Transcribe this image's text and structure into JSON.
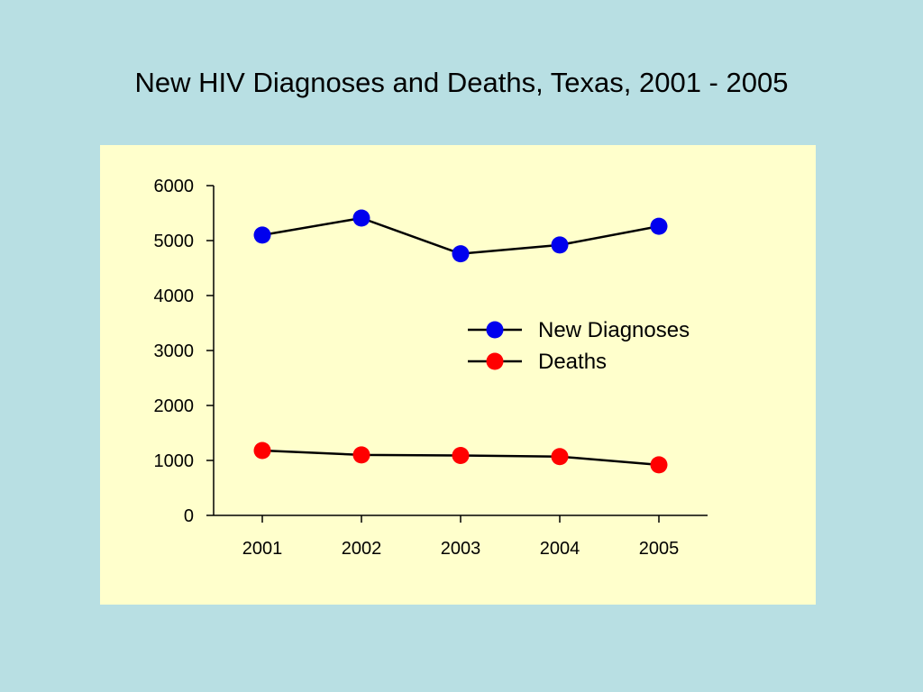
{
  "title": "New HIV Diagnoses and Deaths, Texas, 2001 - 2005",
  "colors": {
    "background": "#b8dfe3",
    "plot_area": "#ffffcc",
    "new_diagnoses": "#0000ee",
    "deaths": "#ff0000",
    "line": "#000000"
  },
  "chart_data": {
    "type": "line",
    "title": "New HIV Diagnoses and Deaths, Texas, 2001 - 2005",
    "xlabel": "",
    "ylabel": "",
    "categories": [
      "2001",
      "2002",
      "2003",
      "2004",
      "2005"
    ],
    "ylim": [
      0,
      6000
    ],
    "yticks": [
      0,
      1000,
      2000,
      3000,
      4000,
      5000,
      6000
    ],
    "grid": false,
    "legend_position": "center-right",
    "series": [
      {
        "name": "New Diagnoses",
        "color": "#0000ee",
        "values": [
          5100,
          5410,
          4760,
          4920,
          5260
        ]
      },
      {
        "name": "Deaths",
        "color": "#ff0000",
        "values": [
          1180,
          1100,
          1090,
          1070,
          920
        ]
      }
    ]
  }
}
